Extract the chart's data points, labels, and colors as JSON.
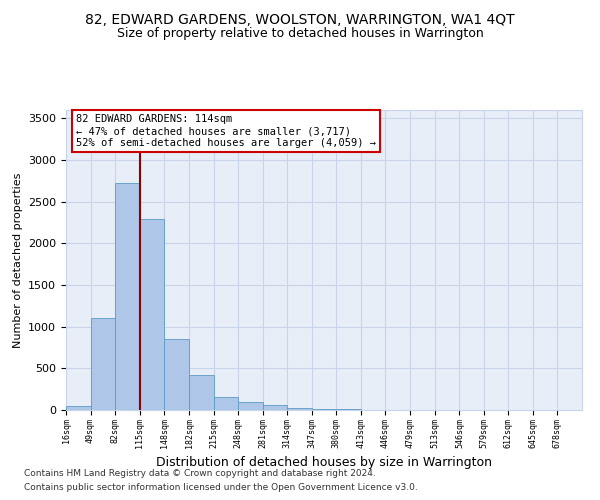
{
  "title": "82, EDWARD GARDENS, WOOLSTON, WARRINGTON, WA1 4QT",
  "subtitle": "Size of property relative to detached houses in Warrington",
  "xlabel": "Distribution of detached houses by size in Warrington",
  "ylabel": "Number of detached properties",
  "footnote1": "Contains HM Land Registry data © Crown copyright and database right 2024.",
  "footnote2": "Contains public sector information licensed under the Open Government Licence v3.0.",
  "annotation_line1": "82 EDWARD GARDENS: 114sqm",
  "annotation_line2": "← 47% of detached houses are smaller (3,717)",
  "annotation_line3": "52% of semi-detached houses are larger (4,059) →",
  "bar_edges": [
    16,
    49,
    82,
    115,
    148,
    182,
    215,
    248,
    281,
    314,
    347,
    380,
    413,
    446,
    479,
    513,
    546,
    579,
    612,
    645,
    678
  ],
  "bar_heights": [
    50,
    1100,
    2720,
    2290,
    850,
    415,
    160,
    100,
    60,
    30,
    15,
    10,
    5,
    3,
    2,
    1,
    1,
    0,
    0,
    0
  ],
  "bar_color": "#aec6e8",
  "bar_edge_color": "#5a9ac8",
  "vline_x": 115,
  "vline_color": "#8b0000",
  "annotation_box_color": "#cc0000",
  "ylim": [
    0,
    3600
  ],
  "yticks": [
    0,
    500,
    1000,
    1500,
    2000,
    2500,
    3000,
    3500
  ],
  "grid_color": "#c8d4e8",
  "bg_color": "#e8eef8",
  "title_fontsize": 10,
  "subtitle_fontsize": 9,
  "xlabel_fontsize": 9,
  "ylabel_fontsize": 8
}
